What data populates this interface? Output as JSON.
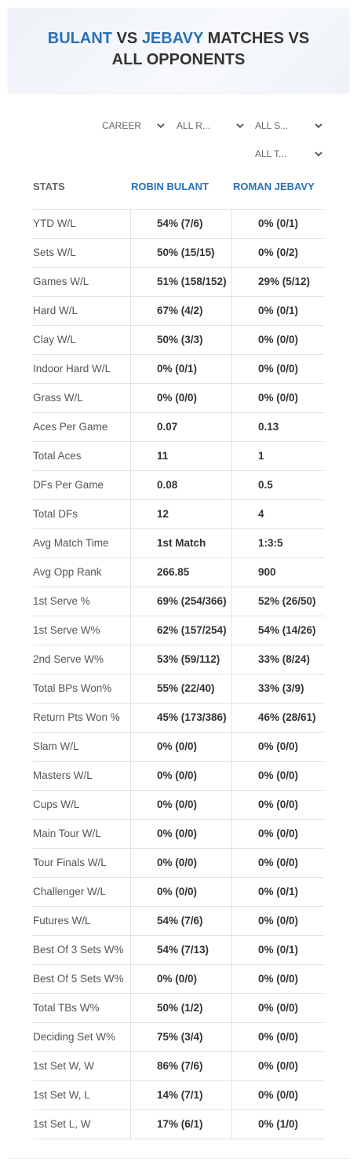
{
  "header": {
    "title": [
      "BULANT",
      "VS",
      "JEBAVY",
      "MATCHES VS ALL OPPONENTS"
    ]
  },
  "filters": [
    "CAREER",
    "ALL R...",
    "ALL S...",
    "ALL T..."
  ],
  "table": {
    "columns": [
      "STATS",
      "ROBIN BULANT",
      "ROMAN JEBAVY"
    ],
    "rows": [
      [
        "YTD W/L",
        "54% (7/6)",
        "0% (0/1)"
      ],
      [
        "Sets W/L",
        "50% (15/15)",
        "0% (0/2)"
      ],
      [
        "Games W/L",
        "51% (158/152)",
        "29% (5/12)"
      ],
      [
        "Hard W/L",
        "67% (4/2)",
        "0% (0/1)"
      ],
      [
        "Clay W/L",
        "50% (3/3)",
        "0% (0/0)"
      ],
      [
        "Indoor Hard W/L",
        "0% (0/1)",
        "0% (0/0)"
      ],
      [
        "Grass W/L",
        "0% (0/0)",
        "0% (0/0)"
      ],
      [
        "Aces Per Game",
        "0.07",
        "0.13"
      ],
      [
        "Total Aces",
        "11",
        "1"
      ],
      [
        "DFs Per Game",
        "0.08",
        "0.5"
      ],
      [
        "Total DFs",
        "12",
        "4"
      ],
      [
        "Avg Match Time",
        "1st Match",
        "1:3:5"
      ],
      [
        "Avg Opp Rank",
        "266.85",
        "900"
      ],
      [
        "1st Serve %",
        "69% (254/366)",
        "52% (26/50)"
      ],
      [
        "1st Serve W%",
        "62% (157/254)",
        "54% (14/26)"
      ],
      [
        "2nd Serve W%",
        "53% (59/112)",
        "33% (8/24)"
      ],
      [
        "Total BPs Won%",
        "55% (22/40)",
        "33% (3/9)"
      ],
      [
        "Return Pts Won %",
        "45% (173/386)",
        "46% (28/61)"
      ],
      [
        "Slam W/L",
        "0% (0/0)",
        "0% (0/0)"
      ],
      [
        "Masters W/L",
        "0% (0/0)",
        "0% (0/0)"
      ],
      [
        "Cups W/L",
        "0% (0/0)",
        "0% (0/0)"
      ],
      [
        "Main Tour W/L",
        "0% (0/0)",
        "0% (0/0)"
      ],
      [
        "Tour Finals W/L",
        "0% (0/0)",
        "0% (0/0)"
      ],
      [
        "Challenger W/L",
        "0% (0/0)",
        "0% (0/1)"
      ],
      [
        "Futures W/L",
        "54% (7/6)",
        "0% (0/0)"
      ],
      [
        "Best Of 3 Sets W%",
        "54% (7/13)",
        "0% (0/1)"
      ],
      [
        "Best Of 5 Sets W%",
        "0% (0/0)",
        "0% (0/0)"
      ],
      [
        "Total TBs W%",
        "50% (1/2)",
        "0% (0/0)"
      ],
      [
        "Deciding Set W%",
        "75% (3/4)",
        "0% (0/0)"
      ],
      [
        "1st Set W, W",
        "86% (7/6)",
        "0% (0/0)"
      ],
      [
        "1st Set W, L",
        "14% (7/1)",
        "0% (0/0)"
      ],
      [
        "1st Set L, W",
        "17% (6/1)",
        "0% (1/0)"
      ]
    ]
  }
}
